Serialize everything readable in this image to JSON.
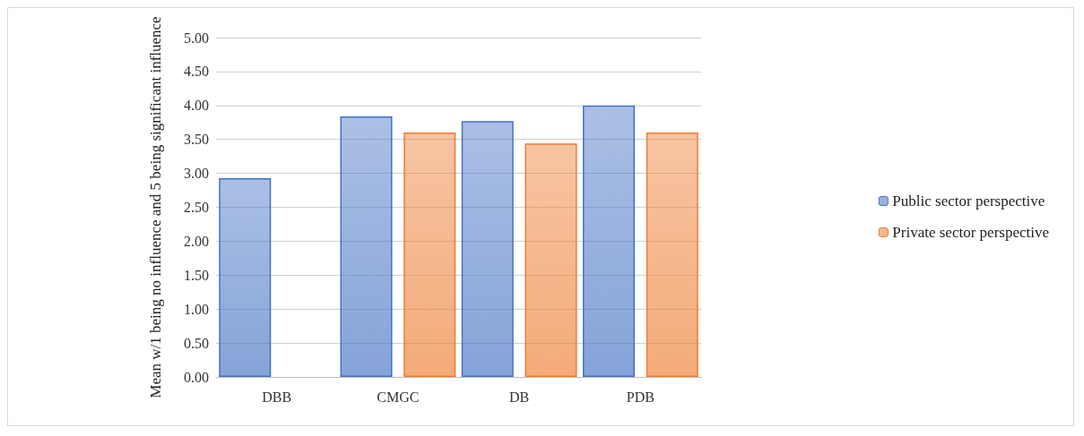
{
  "chart_data": {
    "type": "bar",
    "ylabel": "Mean w/1 being no influence and 5 being significant influence",
    "categories": [
      "DBB",
      "CMGC",
      "DB",
      "PDB"
    ],
    "series": [
      {
        "name": "Public sector perspective",
        "color": "#4472c4",
        "values": [
          2.93,
          3.84,
          3.77,
          4.0
        ]
      },
      {
        "name": "Private sector perspective",
        "color": "#ed7d31",
        "values": [
          null,
          3.6,
          3.44,
          3.6
        ]
      }
    ],
    "ylim": [
      0,
      5
    ],
    "yticks": [
      {
        "value": 0,
        "label": "0.00"
      },
      {
        "value": 0.5,
        "label": "0.50"
      },
      {
        "value": 1,
        "label": "1.00"
      },
      {
        "value": 1.5,
        "label": "1.50"
      },
      {
        "value": 2,
        "label": "2.00"
      },
      {
        "value": 2.5,
        "label": "2.50"
      },
      {
        "value": 3,
        "label": "3.00"
      },
      {
        "value": 3.5,
        "label": "3.50"
      },
      {
        "value": 4,
        "label": "4.00"
      },
      {
        "value": 4.5,
        "label": "4.50"
      },
      {
        "value": 5,
        "label": "5.00"
      }
    ],
    "grid": "y",
    "legend": "right"
  }
}
